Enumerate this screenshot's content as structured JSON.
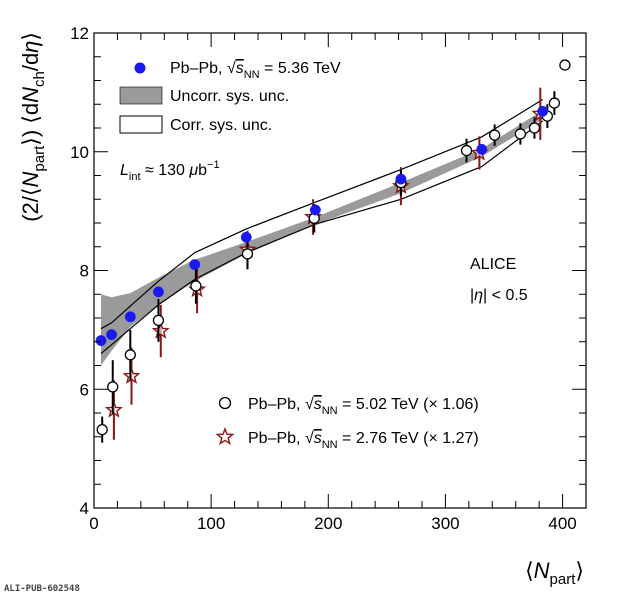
{
  "chart_data": {
    "type": "scatter",
    "x_axis": {
      "label_html": "⟨<tspan font-style='italic'>N</tspan><tspan dy='6' font-size='15'>part</tspan><tspan dy='-6'>⟩</tspan>",
      "range": [
        0,
        420
      ],
      "ticks": [
        0,
        100,
        200,
        300,
        400
      ],
      "tick_labels": [
        "0",
        "100",
        "200",
        "300",
        "400"
      ]
    },
    "y_axis": {
      "label_html": "(2/⟨<tspan font-style='italic'>N</tspan><tspan dy='6' font-size='15'>part</tspan><tspan dy='-6'>⟩)  ⟨d</tspan><tspan font-style='italic'>N</tspan><tspan dy='6' font-size='15'>ch</tspan><tspan dy='-6'>/d</tspan><tspan font-style='italic'>η</tspan><tspan>⟩</tspan>",
      "range": [
        4,
        12
      ],
      "ticks": [
        4,
        6,
        8,
        10,
        12
      ],
      "tick_labels": [
        "4",
        "6",
        "8",
        "10",
        "12"
      ]
    },
    "grid": false,
    "legend_top": [
      {
        "marker": "filled-circle",
        "color": "#1a1aee",
        "label_html": "Pb–Pb, <tspan font-size='16'>√</tspan><tspan text-decoration='overline' font-style='italic'>s</tspan><tspan dy='5' font-size='11'>NN</tspan><tspan dy='-5'> = 5.36 TeV</tspan>"
      },
      {
        "marker": "grey-box",
        "color": "#9a9a9a",
        "label_html": "Uncorr. sys. unc."
      },
      {
        "marker": "open-box",
        "color": "#000000",
        "label_html": "Corr. sys. unc."
      }
    ],
    "luminosity_html": "<tspan font-style='italic'>L</tspan><tspan dy='5' font-size='11'>int</tspan><tspan dy='-5'> ≈ 130 </tspan><tspan font-style='italic'>μ</tspan><tspan>b</tspan><tspan dy='-7' font-size='11'>−1</tspan>",
    "annotation_experiment": "ALICE",
    "annotation_eta_html": "|<tspan font-style='italic'>η</tspan>| &lt; 0.5",
    "legend_bottom": [
      {
        "marker": "open-circle",
        "color": "#000000",
        "label_html": "Pb–Pb, <tspan font-size='16'>√</tspan><tspan text-decoration='overline' font-style='italic'>s</tspan><tspan dy='5' font-size='11'>NN</tspan><tspan dy='-5'> = 5.02 TeV (× 1.06)</tspan>"
      },
      {
        "marker": "open-star",
        "color": "#8b1414",
        "label_html": "Pb–Pb, <tspan font-size='16'>√</tspan><tspan text-decoration='overline' font-style='italic'>s</tspan><tspan dy='5' font-size='11'>NN</tspan><tspan dy='-5'> = 2.76 TeV (× 1.27)</tspan>"
      }
    ],
    "series": [
      {
        "name": "Pb–Pb 5.36 TeV",
        "style": "filled-circle",
        "color": "#1a1aee",
        "x": [
          6,
          15,
          31,
          55,
          86,
          130,
          189,
          262,
          331,
          383
        ],
        "y": [
          6.82,
          6.92,
          7.22,
          7.64,
          8.1,
          8.56,
          9.02,
          9.54,
          10.04,
          10.68
        ],
        "uncorr_band": {
          "x": [
            6,
            15,
            31,
            55,
            86,
            130,
            189,
            262,
            331,
            383
          ],
          "low": [
            6.4,
            6.65,
            7.05,
            7.42,
            7.82,
            8.28,
            8.78,
            9.3,
            9.92,
            10.55
          ],
          "high": [
            7.6,
            7.55,
            7.62,
            7.88,
            8.18,
            8.48,
            8.9,
            9.48,
            10.05,
            10.7
          ]
        },
        "corr_band": {
          "x": [
            6,
            15,
            31,
            55,
            86,
            130,
            189,
            262,
            331,
            383
          ],
          "low": [
            6.6,
            6.75,
            7.02,
            7.42,
            7.85,
            8.3,
            8.78,
            9.2,
            9.75,
            10.52
          ],
          "high": [
            7.02,
            7.12,
            7.4,
            7.82,
            8.3,
            8.7,
            9.15,
            9.7,
            10.25,
            10.88
          ]
        }
      },
      {
        "name": "Pb–Pb 5.02 TeV (× 1.06)",
        "style": "open-circle",
        "color": "#000000",
        "x": [
          7,
          16,
          31,
          55,
          87,
          131,
          188,
          262,
          318,
          342,
          364,
          376,
          387,
          393,
          402
        ],
        "y": [
          5.32,
          6.04,
          6.58,
          7.16,
          7.74,
          8.28,
          8.88,
          9.48,
          10.02,
          10.28,
          10.3,
          10.4,
          10.6,
          10.82,
          11.46
        ],
        "err": [
          0.22,
          0.45,
          0.42,
          0.36,
          0.3,
          0.26,
          0.24,
          0.22,
          0.2,
          0.18,
          0.18,
          0.18,
          0.2,
          0.2,
          0.08
        ]
      },
      {
        "name": "Pb–Pb 2.76 TeV (× 1.27)",
        "style": "open-star",
        "color": "#8b1414",
        "x": [
          17,
          32,
          57,
          88,
          131,
          187,
          262,
          329,
          381
        ],
        "y": [
          5.65,
          6.22,
          6.98,
          7.68,
          8.35,
          8.9,
          9.42,
          9.98,
          10.64
        ],
        "err": [
          0.5,
          0.48,
          0.44,
          0.4,
          0.32,
          0.3,
          0.32,
          0.28,
          0.44
        ]
      }
    ]
  },
  "footer": {
    "pub_id": "ALI-PUB-602548"
  }
}
